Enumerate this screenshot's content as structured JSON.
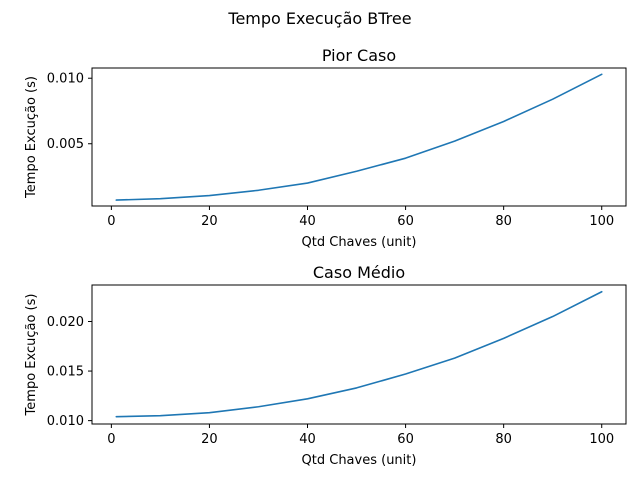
{
  "figure": {
    "suptitle": "Tempo Execução BTree"
  },
  "chart_data": [
    {
      "type": "line",
      "title": "Pior Caso",
      "xlabel": "Qtd Chaves (unit)",
      "ylabel": "Tempo Excução (s)",
      "xlim": [
        -3.95,
        104.95
      ],
      "ylim": [
        0.00025,
        0.01078
      ],
      "xticks": [
        0,
        20,
        40,
        60,
        80,
        100
      ],
      "xtick_labels": [
        "0",
        "20",
        "40",
        "60",
        "80",
        "100"
      ],
      "yticks": [
        0.005,
        0.01
      ],
      "ytick_labels": [
        "0.005",
        "0.010"
      ],
      "grid": false,
      "line_color": "#1f77b4",
      "x": [
        1,
        10,
        20,
        30,
        40,
        50,
        60,
        70,
        80,
        90,
        100
      ],
      "y": [
        0.0007,
        0.00081,
        0.00105,
        0.00145,
        0.002,
        0.0029,
        0.0039,
        0.0052,
        0.0067,
        0.0084,
        0.0103
      ]
    },
    {
      "type": "line",
      "title": "Caso Médio",
      "xlabel": "Qtd Chaves (unit)",
      "ylabel": "Tempo Excução (s)",
      "xlim": [
        -3.95,
        104.95
      ],
      "ylim": [
        0.00966,
        0.02368
      ],
      "xticks": [
        0,
        20,
        40,
        60,
        80,
        100
      ],
      "xtick_labels": [
        "0",
        "20",
        "40",
        "60",
        "80",
        "100"
      ],
      "yticks": [
        0.01,
        0.015,
        0.02
      ],
      "ytick_labels": [
        "0.010",
        "0.015",
        "0.020"
      ],
      "grid": false,
      "line_color": "#1f77b4",
      "x": [
        1,
        10,
        20,
        30,
        40,
        50,
        60,
        70,
        80,
        90,
        100
      ],
      "y": [
        0.0104,
        0.0105,
        0.0108,
        0.0114,
        0.0122,
        0.0133,
        0.0147,
        0.0163,
        0.0183,
        0.0205,
        0.023
      ]
    }
  ]
}
